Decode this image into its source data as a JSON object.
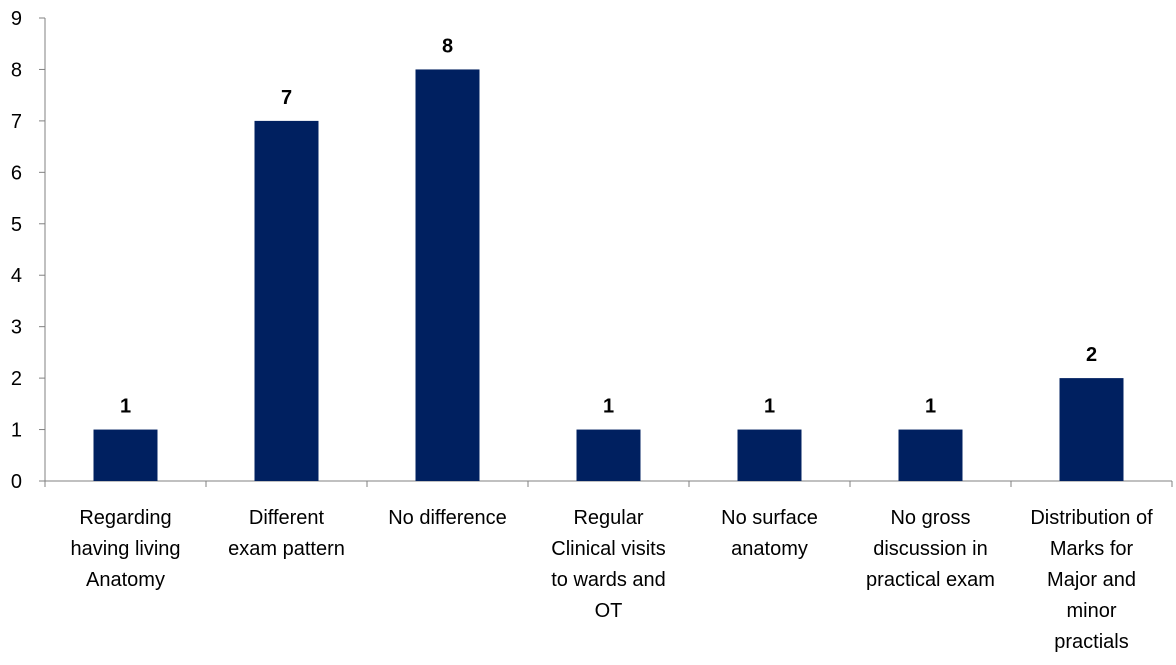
{
  "chart_data": {
    "type": "bar",
    "title": "",
    "xlabel": "",
    "ylabel": "",
    "ylim": [
      0,
      9
    ],
    "yticks": [
      "0",
      "1",
      "2",
      "3",
      "4",
      "5",
      "6",
      "7",
      "8",
      "9"
    ],
    "grid": false,
    "legend": "none",
    "bar_color": "#002060",
    "categories": [
      [
        "Regarding",
        "having living",
        "Anatomy"
      ],
      [
        "Different",
        "exam pattern"
      ],
      [
        "No difference"
      ],
      [
        "Regular",
        "Clinical visits",
        "to wards and",
        "OT"
      ],
      [
        "No surface",
        "anatomy"
      ],
      [
        "No gross",
        "discussion in",
        "practical exam"
      ],
      [
        "Distribution of",
        "Marks for",
        "Major and",
        "minor",
        "practials"
      ]
    ],
    "values": [
      1,
      7,
      8,
      1,
      1,
      1,
      2
    ],
    "data_labels": [
      "1",
      "7",
      "8",
      "1",
      "1",
      "1",
      "2"
    ]
  }
}
